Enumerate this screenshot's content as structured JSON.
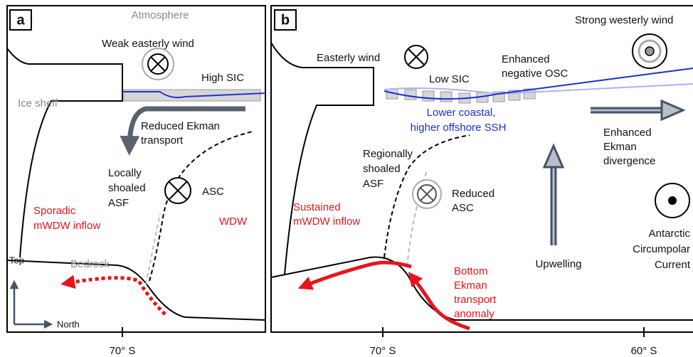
{
  "panel_a": {
    "label": "a",
    "atmosphere": "Atmosphere",
    "wind": "Weak easterly wind",
    "sic": "High SIC",
    "ice_shelf": "Ice shelf",
    "ekman": [
      "Reduced Ekman",
      "transport"
    ],
    "asf": [
      "Locally",
      "shoaled",
      "ASF"
    ],
    "asc": "ASC",
    "wdw": "WDW",
    "inflow": [
      "Sporadic",
      "mWDW inflow"
    ],
    "bedrock": "Bedrock",
    "compass_up": "Top",
    "compass_right": "North",
    "lat": "70° S"
  },
  "panel_b": {
    "label": "b",
    "westerly": "Strong westerly wind",
    "easterly": "Easterly wind",
    "sic": "Low SIC",
    "osc": [
      "Enhanced",
      "negative OSC"
    ],
    "ssh": [
      "Lower coastal,",
      "higher offshore SSH"
    ],
    "divergence": [
      "Enhanced",
      "Ekman",
      "divergence"
    ],
    "asf": [
      "Regionally",
      "shoaled",
      "ASF"
    ],
    "asc": [
      "Reduced",
      "ASC"
    ],
    "inflow": [
      "Sustained",
      "mWDW inflow"
    ],
    "upwelling": "Upwelling",
    "acc": [
      "Antarctic",
      "Circumpolar",
      "Current"
    ],
    "bottom": [
      "Bottom",
      "Ekman",
      "transport",
      "anomaly"
    ],
    "lat_1": "70° S",
    "lat_2": "60° S"
  }
}
